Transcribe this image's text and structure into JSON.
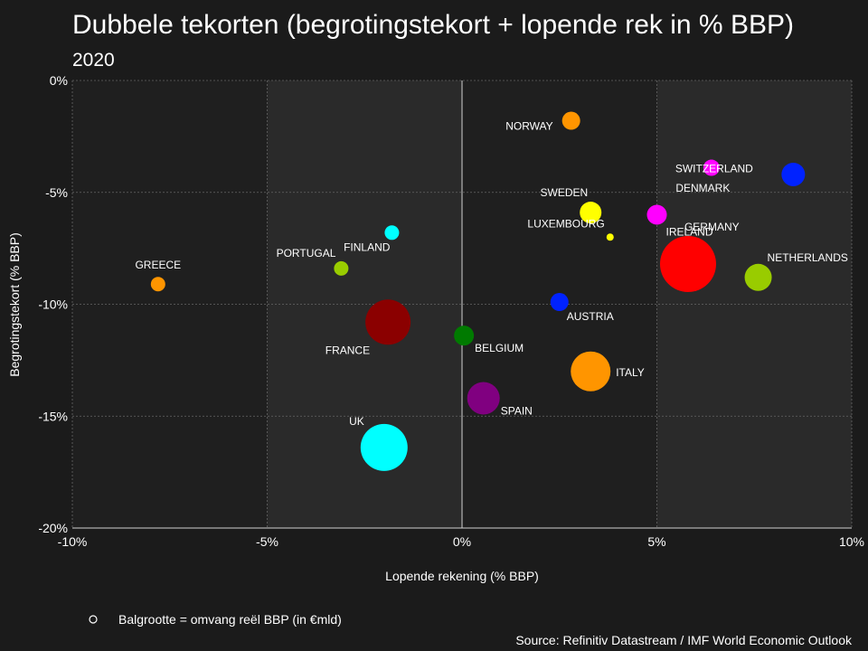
{
  "chart_data": {
    "type": "scatter",
    "title": "Dubbele tekorten (begrotingstekort + lopende rek in % BBP)",
    "subtitle": "2020",
    "xlabel": "Lopende rekening (% BBP)",
    "ylabel": "Begrotingstekort (% BBP)",
    "xlim": [
      -10,
      10
    ],
    "ylim": [
      -20,
      0
    ],
    "x_ticks": [
      -10,
      -5,
      0,
      5,
      10
    ],
    "y_ticks": [
      0,
      -5,
      -10,
      -15,
      -20
    ],
    "x_tick_labels": [
      "-10%",
      "-5%",
      "0%",
      "5%",
      "10%"
    ],
    "y_tick_labels": [
      "0%",
      "-5%",
      "-10%",
      "-15%",
      "-20%"
    ],
    "grid": true,
    "size_legend": "Balgrootte = omvang reël BBP (in €mld)",
    "source": "Source: Refinitiv Datastream / IMF World Economic Outlook",
    "points": [
      {
        "label": "NORWAY",
        "x": 2.8,
        "y": -1.8,
        "size": 10,
        "color": "#ff9500",
        "label_pos": "left"
      },
      {
        "label": "SWITZERLAND",
        "x": 6.4,
        "y": -3.9,
        "size": 9,
        "color": "#ff00ff",
        "label_pos": "right"
      },
      {
        "label": "DENMARK",
        "x": 8.5,
        "y": -4.2,
        "size": 13,
        "color": "#0022ff",
        "label_pos": "belowleft"
      },
      {
        "label": "SWEDEN",
        "x": 3.3,
        "y": -5.9,
        "size": 12,
        "color": "#ffff00",
        "label_pos": "aboveleft"
      },
      {
        "label": "LUXEMBOURG",
        "x": 3.8,
        "y": -7.0,
        "size": 4,
        "color": "#ffff00",
        "label_pos": "aboveleft"
      },
      {
        "label": "IRELAND",
        "x": 5.0,
        "y": -6.0,
        "size": 11,
        "color": "#ff00ff",
        "label_pos": "belowright"
      },
      {
        "label": "GERMANY",
        "x": 5.8,
        "y": -8.2,
        "size": 31,
        "color": "#ff0000",
        "label_pos": "aboveright"
      },
      {
        "label": "NETHERLANDS",
        "x": 7.6,
        "y": -8.8,
        "size": 15,
        "color": "#99cc00",
        "label_pos": "aboveright"
      },
      {
        "label": "FINLAND",
        "x": -1.8,
        "y": -6.8,
        "size": 8,
        "color": "#00ffff",
        "label_pos": "belowleft"
      },
      {
        "label": "PORTUGAL",
        "x": -3.1,
        "y": -8.4,
        "size": 8,
        "color": "#99cc00",
        "label_pos": "aboveleft"
      },
      {
        "label": "GREECE",
        "x": -7.8,
        "y": -9.1,
        "size": 8,
        "color": "#ff9500",
        "label_pos": "above"
      },
      {
        "label": "AUSTRIA",
        "x": 2.5,
        "y": -9.9,
        "size": 10,
        "color": "#0022ff",
        "label_pos": "belowright"
      },
      {
        "label": "FRANCE",
        "x": -1.9,
        "y": -10.8,
        "size": 25,
        "color": "#8b0000",
        "label_pos": "belowleft"
      },
      {
        "label": "BELGIUM",
        "x": 0.05,
        "y": -11.4,
        "size": 11,
        "color": "#007a00",
        "label_pos": "belowright"
      },
      {
        "label": "ITALY",
        "x": 3.3,
        "y": -13.0,
        "size": 22,
        "color": "#ff9500",
        "label_pos": "right"
      },
      {
        "label": "SPAIN",
        "x": 0.55,
        "y": -14.2,
        "size": 18,
        "color": "#800080",
        "label_pos": "belowright"
      },
      {
        "label": "UK",
        "x": -2.0,
        "y": -16.4,
        "size": 26,
        "color": "#00ffff",
        "label_pos": "aboveleft"
      }
    ]
  }
}
